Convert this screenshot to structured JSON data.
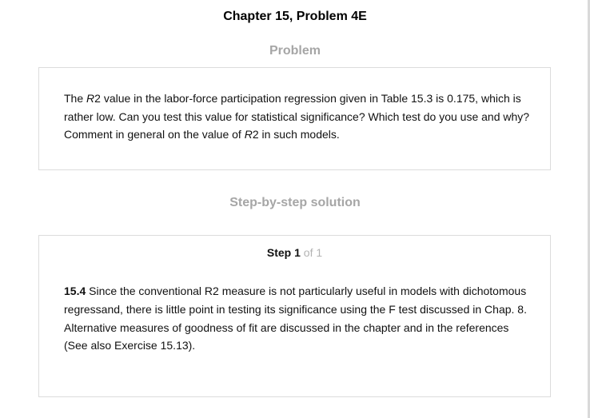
{
  "chapter_title": "Chapter 15, Problem 4E",
  "problem": {
    "heading": "Problem",
    "text_1": "The ",
    "r2_1": "R",
    "text_2": "2 value in the labor-force participation regression given in Table 15.3 is 0.175, which is rather low. Can you test this value for statistical significance? Which test do you use and why? Comment in general on the value of ",
    "r2_2": "R",
    "text_3": "2 in such models."
  },
  "solution": {
    "heading": "Step-by-step solution",
    "step_word": "Step",
    "step_number": "1",
    "step_of": "of 1",
    "problem_number": "15.4",
    "text": "Since the conventional R2 measure is not particularly useful in models with dichotomous regressand, there is little point in testing its significance using the F test discussed in Chap. 8. Alternative measures of goodness of fit are discussed in the chapter and in the references (See also Exercise 15.13)."
  }
}
